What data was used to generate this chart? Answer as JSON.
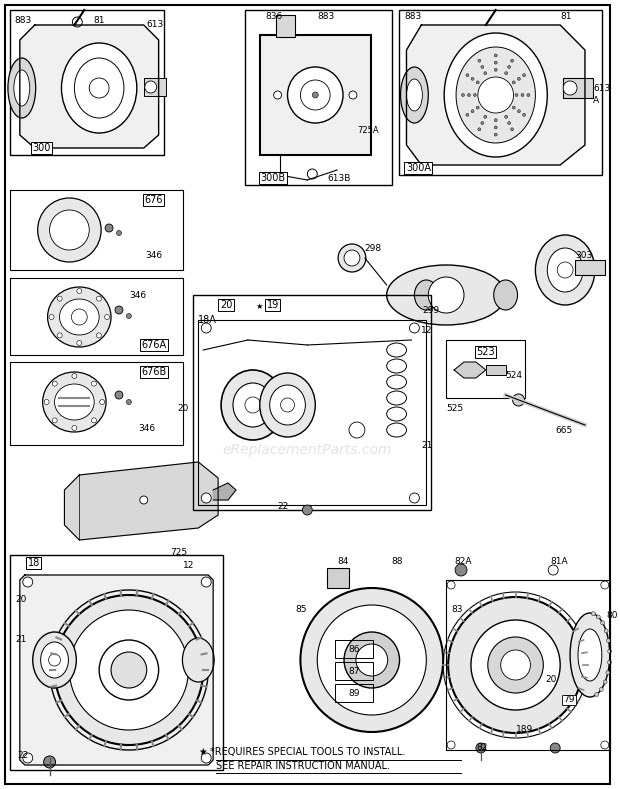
{
  "bg_color": "#ffffff",
  "border_color": "#000000",
  "watermark": "eReplacementParts.com",
  "footer_line1": "*REQUIRES SPECIAL TOOLS TO INSTALL.",
  "footer_line2": "SEE REPAIR INSTRUCTION MANUAL.",
  "fig_width": 6.2,
  "fig_height": 7.89,
  "dpi": 100
}
